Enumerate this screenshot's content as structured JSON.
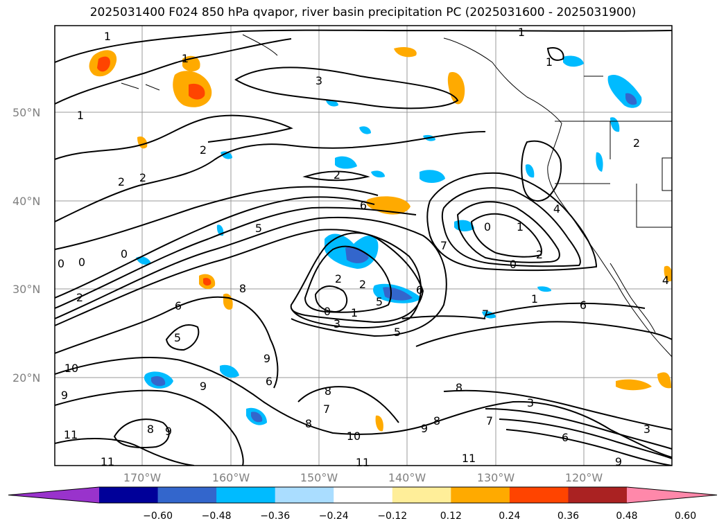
{
  "title": "2025031400 F024 850 hPa qvapor, river basin precipitation PC (2025031600 - 2025031900)",
  "lat_ticks": [
    "50°N",
    "40°N",
    "30°N",
    "20°N"
  ],
  "lon_ticks": [
    "170°W",
    "160°W",
    "150°W",
    "140°W",
    "130°W",
    "120°W"
  ],
  "colorbar": {
    "ticks": [
      "−0.60",
      "−0.48",
      "−0.36",
      "−0.24",
      "−0.12",
      "0.12",
      "0.24",
      "0.36",
      "0.48",
      "0.60"
    ],
    "colors": [
      "#9933cc",
      "#000099",
      "#3366cc",
      "#00bbff",
      "#aaddff",
      "#ffffff",
      "#ffee99",
      "#ffaa00",
      "#ff4400",
      "#aa2222",
      "#ff88aa"
    ]
  },
  "contour_labels": [
    {
      "text": "1"
    },
    {
      "text": "1"
    },
    {
      "text": "3"
    },
    {
      "text": "1"
    },
    {
      "text": "1"
    },
    {
      "text": "1"
    },
    {
      "text": "2"
    },
    {
      "text": "2"
    },
    {
      "text": "2"
    },
    {
      "text": "2"
    },
    {
      "text": "2"
    },
    {
      "text": "4"
    },
    {
      "text": "0"
    },
    {
      "text": "0"
    },
    {
      "text": "0"
    },
    {
      "text": "0"
    },
    {
      "text": "0"
    },
    {
      "text": "1"
    },
    {
      "text": "5"
    },
    {
      "text": "6"
    },
    {
      "text": "7"
    },
    {
      "text": "2"
    },
    {
      "text": "6"
    },
    {
      "text": "8"
    },
    {
      "text": "2"
    },
    {
      "text": "2"
    },
    {
      "text": "0"
    },
    {
      "text": "1"
    },
    {
      "text": "3"
    },
    {
      "text": "5"
    },
    {
      "text": "7"
    },
    {
      "text": "1"
    },
    {
      "text": "6"
    },
    {
      "text": "6"
    },
    {
      "text": "5"
    },
    {
      "text": "10"
    },
    {
      "text": "9"
    },
    {
      "text": "9"
    },
    {
      "text": "6"
    },
    {
      "text": "9"
    },
    {
      "text": "8"
    },
    {
      "text": "7"
    },
    {
      "text": "8"
    },
    {
      "text": "8"
    },
    {
      "text": "3"
    },
    {
      "text": "8"
    },
    {
      "text": "9"
    },
    {
      "text": "7"
    },
    {
      "text": "10"
    },
    {
      "text": "11"
    },
    {
      "text": "11"
    },
    {
      "text": "11"
    },
    {
      "text": "9"
    },
    {
      "text": "11"
    },
    {
      "text": "9"
    },
    {
      "text": "3"
    },
    {
      "text": "6"
    },
    {
      "text": "5"
    },
    {
      "text": "4"
    },
    {
      "text": "2"
    },
    {
      "text": "8"
    }
  ]
}
